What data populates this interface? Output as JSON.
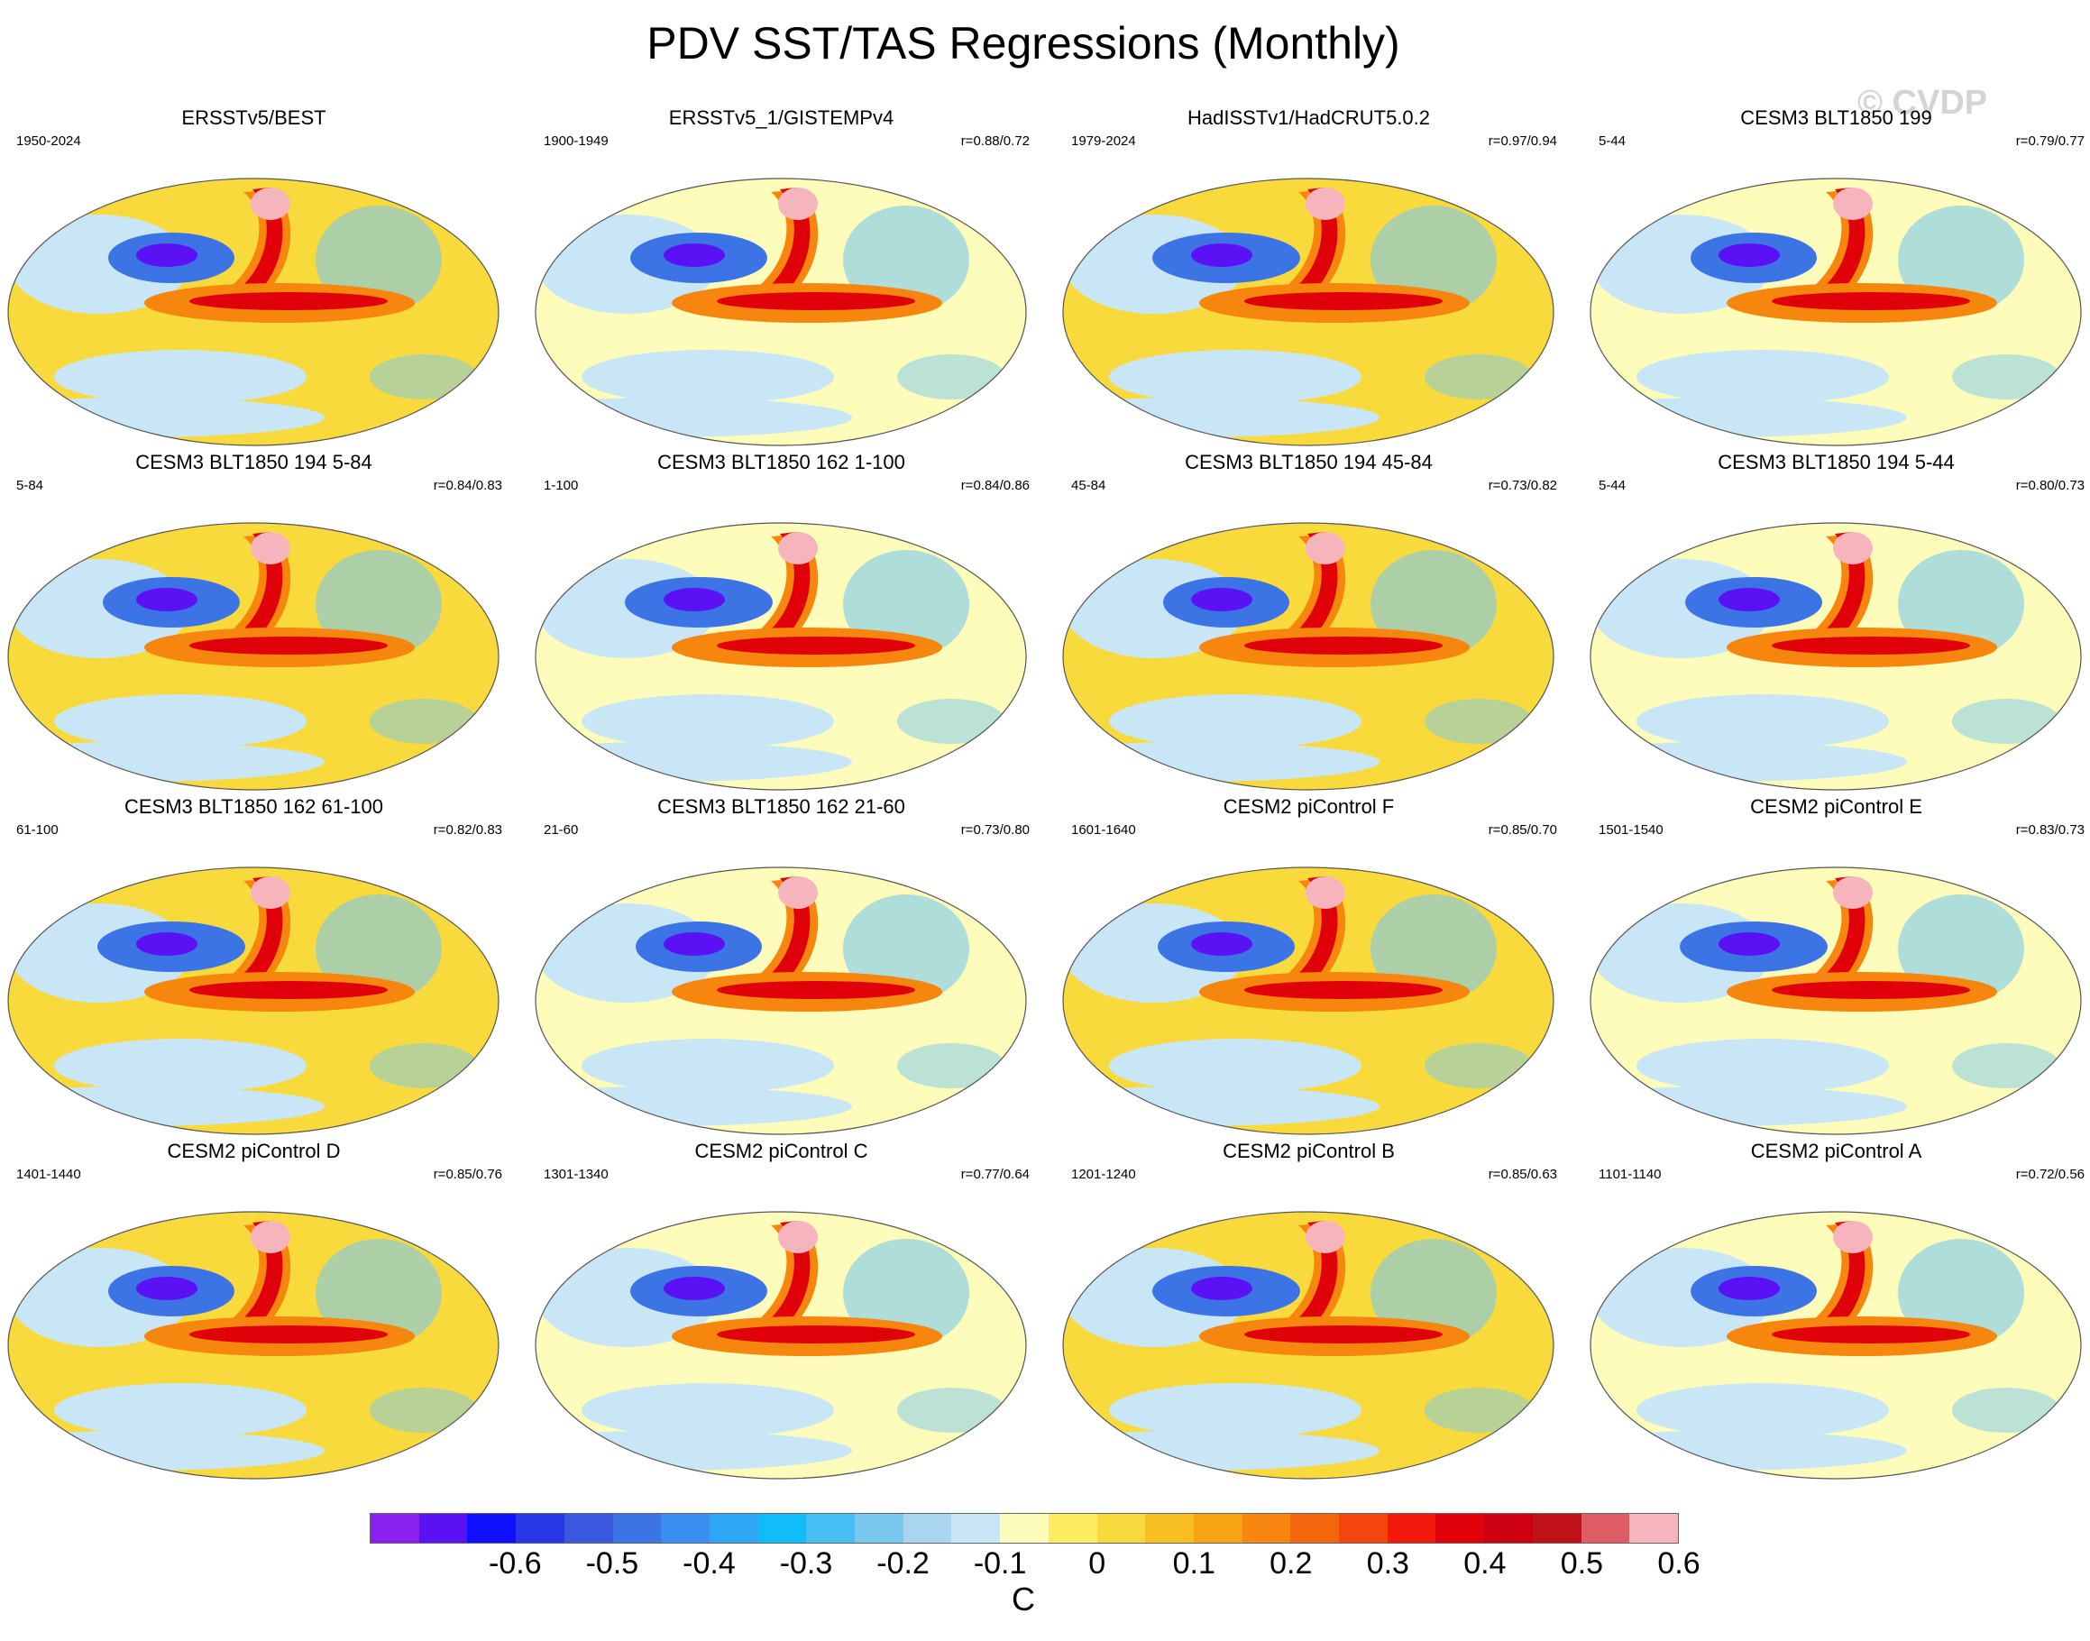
{
  "title": "PDV SST/TAS Regressions (Monthly)",
  "watermark": "© CVDP",
  "panels": [
    {
      "title": "ERSSTv5/BEST",
      "years": "1950-2024",
      "corr": "",
      "pattern": 0
    },
    {
      "title": "ERSSTv5_1/GISTEMPv4",
      "years": "1900-1949",
      "corr": "r=0.88/0.72",
      "pattern": 1
    },
    {
      "title": "HadISSTv1/HadCRUT5.0.2",
      "years": "1979-2024",
      "corr": "r=0.97/0.94",
      "pattern": 2
    },
    {
      "title": "CESM3 BLT1850 199",
      "years": "5-44",
      "corr": "r=0.79/0.77",
      "pattern": 3
    },
    {
      "title": "CESM3 BLT1850 194 5-84",
      "years": "5-84",
      "corr": "r=0.84/0.83",
      "pattern": 4
    },
    {
      "title": "CESM3 BLT1850 162 1-100",
      "years": "1-100",
      "corr": "r=0.84/0.86",
      "pattern": 5
    },
    {
      "title": "CESM3 BLT1850 194 45-84",
      "years": "45-84",
      "corr": "r=0.73/0.82",
      "pattern": 6
    },
    {
      "title": "CESM3 BLT1850 194 5-44",
      "years": "5-44",
      "corr": "r=0.80/0.73",
      "pattern": 7
    },
    {
      "title": "CESM3 BLT1850 162 61-100",
      "years": "61-100",
      "corr": "r=0.82/0.83",
      "pattern": 8
    },
    {
      "title": "CESM3 BLT1850 162 21-60",
      "years": "21-60",
      "corr": "r=0.73/0.80",
      "pattern": 9
    },
    {
      "title": "CESM2 piControl F",
      "years": "1601-1640",
      "corr": "r=0.85/0.70",
      "pattern": 10
    },
    {
      "title": "CESM2 piControl E",
      "years": "1501-1540",
      "corr": "r=0.83/0.73",
      "pattern": 11
    },
    {
      "title": "CESM2 piControl D",
      "years": "1401-1440",
      "corr": "r=0.85/0.76",
      "pattern": 12
    },
    {
      "title": "CESM2 piControl C",
      "years": "1301-1340",
      "corr": "r=0.77/0.64",
      "pattern": 13
    },
    {
      "title": "CESM2 piControl B",
      "years": "1201-1240",
      "corr": "r=0.85/0.63",
      "pattern": 14
    },
    {
      "title": "CESM2 piControl A",
      "years": "1101-1140",
      "corr": "r=0.72/0.56",
      "pattern": 15
    }
  ],
  "colorbar": {
    "unit": "C",
    "labels": [
      "-0.6",
      "-0.5",
      "-0.4",
      "-0.3",
      "-0.2",
      "-0.1",
      "0",
      "0.1",
      "0.2",
      "0.3",
      "0.4",
      "0.5",
      "0.6"
    ],
    "colors": [
      "#8a20f0",
      "#5a12f5",
      "#1010ff",
      "#2838e8",
      "#3a58dd",
      "#3c74e6",
      "#3a8ef0",
      "#2ea6f6",
      "#10bcfa",
      "#46c0f4",
      "#78c8f0",
      "#a8d6f0",
      "#c8e6f6",
      "#fefcba",
      "#fbec62",
      "#f9da3c",
      "#f7c020",
      "#f7a312",
      "#f6860e",
      "#f5660c",
      "#f5440c",
      "#f2180a",
      "#e20008",
      "#cc0010",
      "#c01018",
      "#e05c64",
      "#f6b4bc"
    ]
  }
}
